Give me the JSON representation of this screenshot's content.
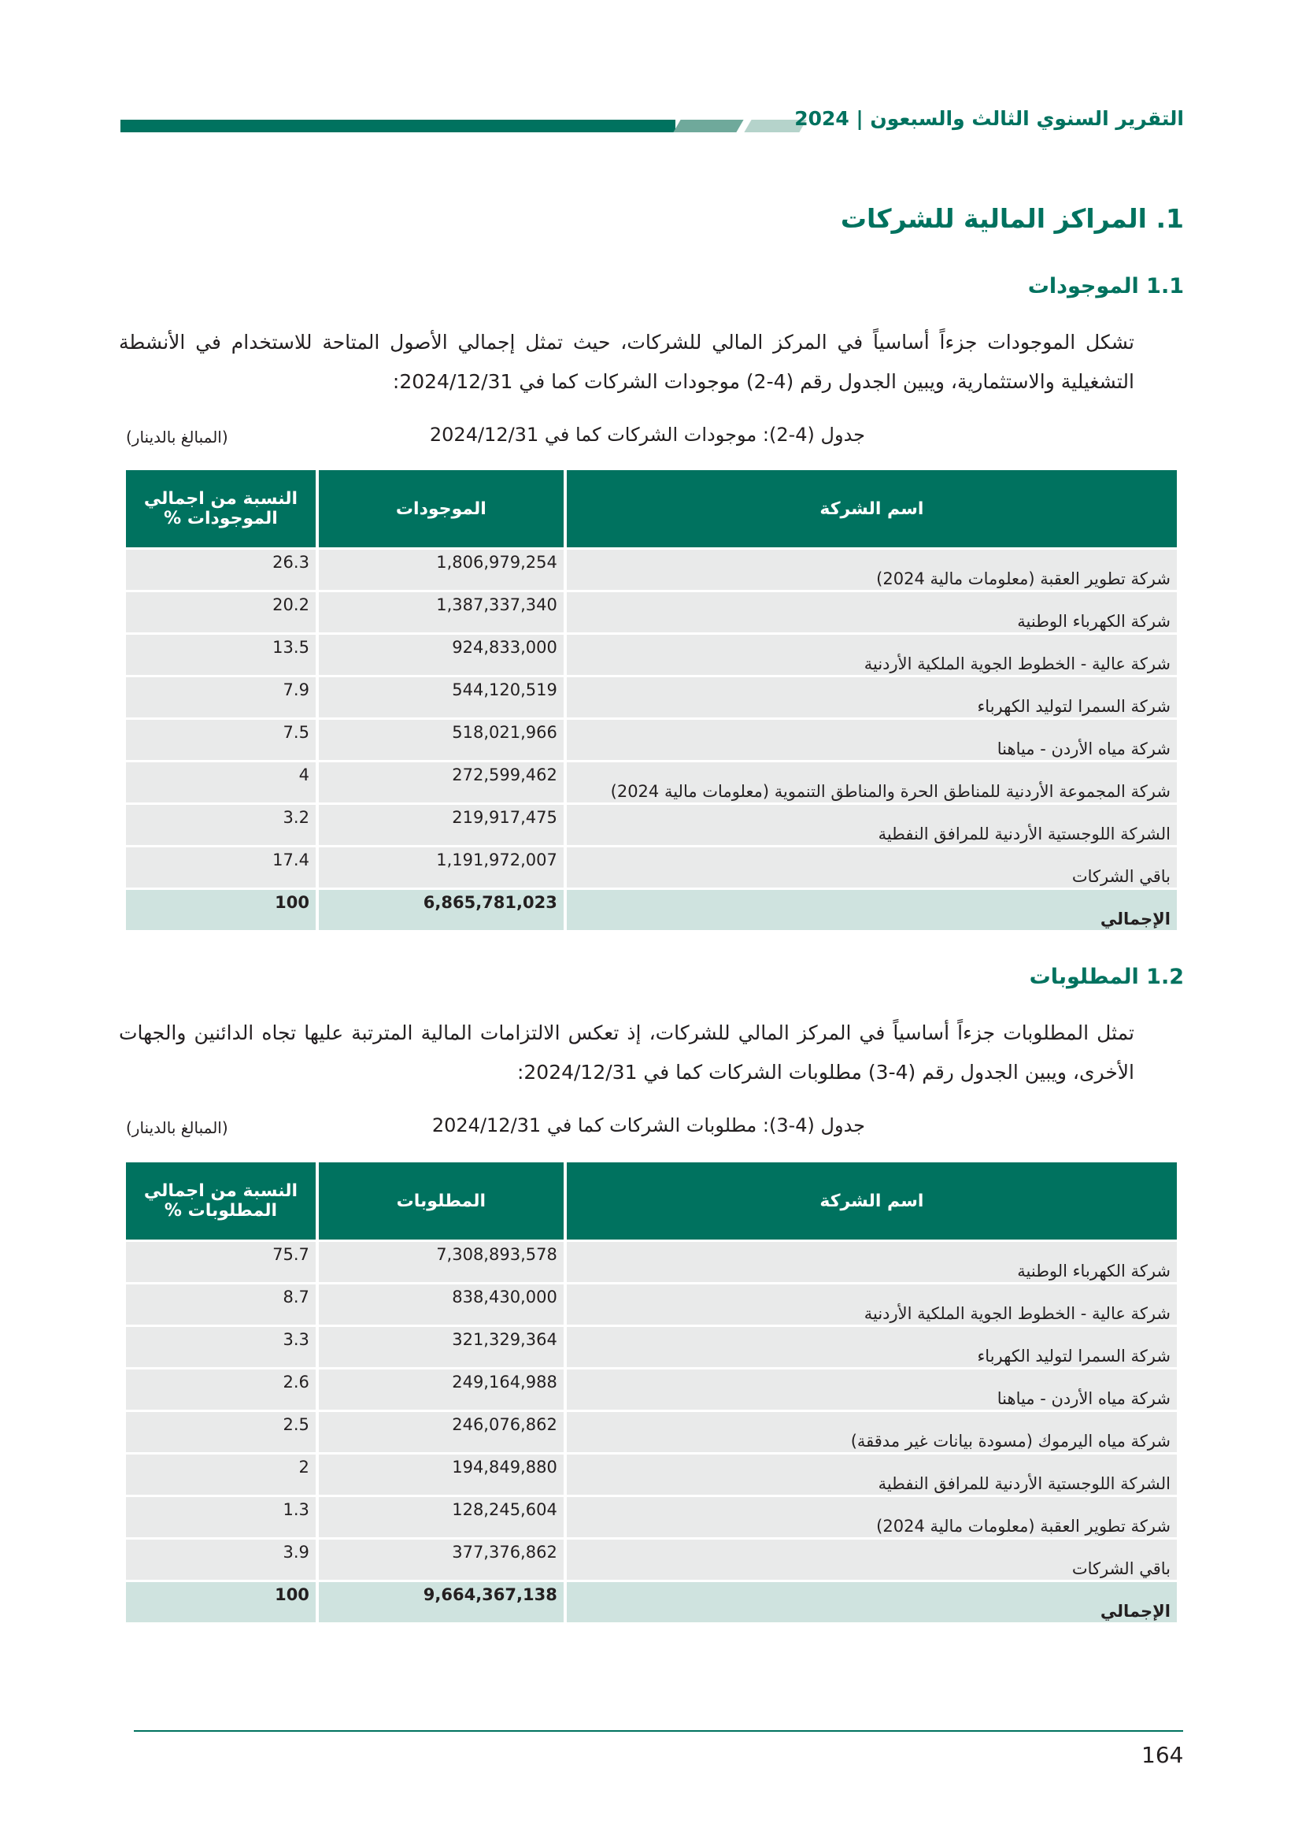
{
  "header": {
    "title": "التقرير السنوي الثالث والسبعون | 2024",
    "accent": "#00725f"
  },
  "section1": {
    "title": "1.   المراكز المالية للشركات"
  },
  "assets": {
    "heading": "1.1  الموجودات",
    "paragraph": "تشكل الموجودات جزءاً أساسياً في المركز المالي للشركات، حيث تمثل إجمالي الأصول المتاحة للاستخدام في الأنشطة التشغيلية والاستثمارية، ويبين الجدول رقم (4-2) موجودات الشركات كما في 2024/12/31:",
    "caption": "جدول (4-2): موجودات الشركات كما في 2024/12/31",
    "unit": "(المبالغ بالدينار)",
    "columns": [
      "اسم الشركة",
      "الموجودات",
      "النسبة من اجمالي الموجودات %"
    ],
    "rows": [
      [
        "شركة تطوير العقبة (معلومات مالية 2024)",
        "1,806,979,254",
        "26.3"
      ],
      [
        "شركة الكهرباء الوطنية",
        "1,387,337,340",
        "20.2"
      ],
      [
        "شركة عالية - الخطوط الجوية الملكية الأردنية",
        "924,833,000",
        "13.5"
      ],
      [
        "شركة السمرا لتوليد الكهرباء",
        "544,120,519",
        "7.9"
      ],
      [
        "شركة مياه الأردن - مياهنا",
        "518,021,966",
        "7.5"
      ],
      [
        "شركة المجموعة الأردنية للمناطق الحرة والمناطق التنموية (معلومات مالية 2024)",
        "272,599,462",
        "4"
      ],
      [
        "الشركة اللوجستية الأردنية للمرافق النفطية",
        "219,917,475",
        "3.2"
      ],
      [
        "باقي الشركات",
        "1,191,972,007",
        "17.4"
      ]
    ],
    "total": [
      "الإجمالي",
      "6,865,781,023",
      "100"
    ]
  },
  "liabilities": {
    "heading": "1.2  المطلوبات",
    "paragraph": "تمثل المطلوبات جزءاً أساسياً في المركز المالي للشركات، إذ تعكس الالتزامات المالية المترتبة عليها تجاه الدائنين والجهات الأخرى، ويبين الجدول رقم (4-3) مطلوبات الشركات كما في 2024/12/31:",
    "caption": "جدول (4-3): مطلوبات  الشركات كما في 2024/12/31",
    "unit": "(المبالغ بالدينار)",
    "columns": [
      "اسم الشركة",
      "المطلوبات",
      "النسبة من اجمالي المطلوبات  %"
    ],
    "rows": [
      [
        "شركة الكهرباء الوطنية",
        "7,308,893,578",
        "75.7"
      ],
      [
        "شركة عالية - الخطوط الجوية الملكية الأردنية",
        "838,430,000",
        "8.7"
      ],
      [
        "شركة السمرا لتوليد الكهرباء",
        "321,329,364",
        "3.3"
      ],
      [
        "شركة مياه الأردن - مياهنا",
        "249,164,988",
        "2.6"
      ],
      [
        "شركة مياه اليرموك (مسودة بيانات غير مدققة)",
        "246,076,862",
        "2.5"
      ],
      [
        "الشركة اللوجستية الأردنية للمرافق النفطية",
        "194,849,880",
        "2"
      ],
      [
        "شركة تطوير العقبة (معلومات مالية 2024)",
        "128,245,604",
        "1.3"
      ],
      [
        "باقي الشركات",
        "377,376,862",
        "3.9"
      ]
    ],
    "total": [
      "الإجمالي",
      "9,664,367,138",
      "100"
    ]
  },
  "footer": {
    "page_number": "164"
  }
}
